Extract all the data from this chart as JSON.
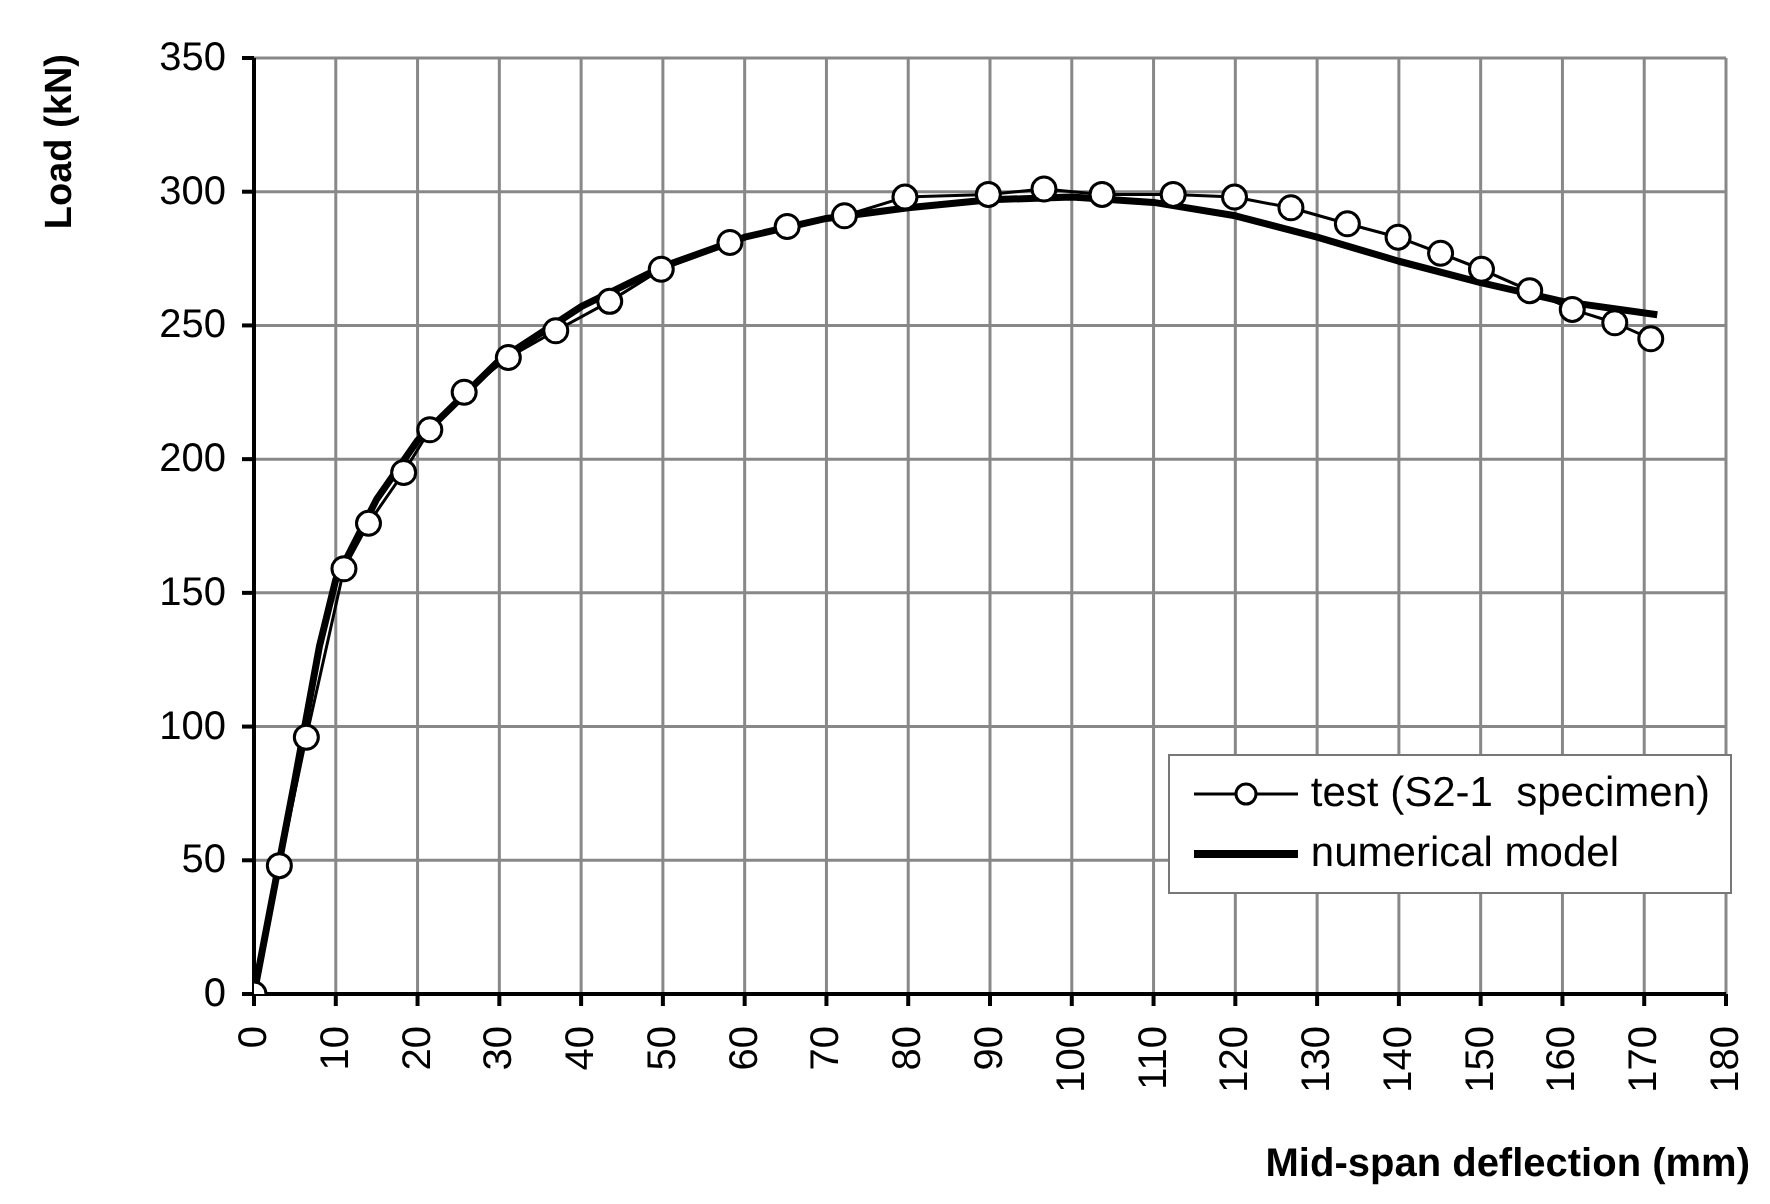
{
  "chart_data": {
    "type": "line",
    "xlabel": "Mid-span deflection  (mm)",
    "ylabel": "Load (kN)",
    "xlim": [
      0,
      180
    ],
    "xticks": [
      0,
      10,
      20,
      30,
      40,
      50,
      60,
      70,
      80,
      90,
      100,
      110,
      120,
      130,
      140,
      150,
      160,
      170,
      180
    ],
    "ylim": [
      0,
      350
    ],
    "yticks": [
      0,
      50,
      100,
      150,
      200,
      250,
      300,
      350
    ],
    "grid": true,
    "legend": "bottom right",
    "series": [
      {
        "name": "test (S2-1  specimen)",
        "color": "#000000",
        "marker": "circle",
        "x": [
          0,
          3.1,
          6.4,
          11,
          14,
          18.3,
          21.5,
          25.7,
          31.1,
          36.9,
          43.5,
          49.8,
          58.2,
          65.2,
          72.2,
          79.6,
          89.8,
          96.6,
          103.7,
          112.4,
          119.9,
          126.8,
          133.7,
          139.9,
          145.1,
          150.1,
          156,
          161.2,
          166.4,
          170.8
        ],
        "values": [
          0,
          48,
          96,
          159,
          176,
          195,
          211,
          225,
          238,
          248,
          259,
          271,
          281,
          287,
          291,
          298,
          299,
          301,
          299,
          299,
          298,
          294,
          288,
          283,
          277,
          271,
          263,
          256,
          251,
          245
        ]
      },
      {
        "name": "numerical model",
        "color": "#000000",
        "marker": "none",
        "x": [
          0,
          5,
          8,
          10,
          15,
          20,
          30,
          40,
          50,
          60,
          70,
          80,
          90,
          100,
          110,
          120,
          130,
          140,
          150,
          160,
          171.6
        ],
        "values": [
          0,
          80,
          130,
          155,
          185,
          207,
          237,
          257,
          272,
          283,
          290,
          294,
          297,
          298,
          296,
          291,
          283,
          274,
          266,
          259,
          254
        ]
      }
    ]
  }
}
